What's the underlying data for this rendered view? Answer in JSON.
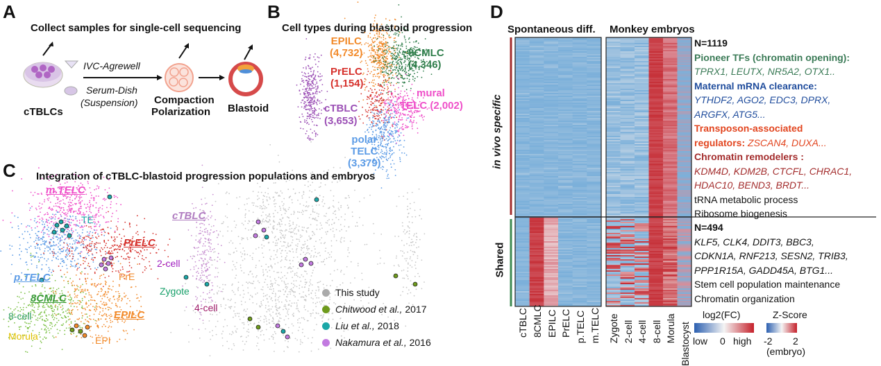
{
  "panels": {
    "a": "A",
    "b": "B",
    "c": "C",
    "d": "D"
  },
  "a": {
    "title": "Collect samples for single-cell sequencing",
    "ivc": "IVC-Agrewell",
    "serum": "Serum-Dish",
    "suspension": "(Suspension)",
    "cells": "cTBLCs",
    "compaction": "Compaction",
    "polarization": "Polarization",
    "blastoid": "Blastoid"
  },
  "b": {
    "title": "Cell types during blastoid progression",
    "clusters": [
      {
        "name": "EPILC",
        "count": "(4,732)",
        "color": "#f28a2a"
      },
      {
        "name": "8CMLC",
        "count": "(4,346)",
        "color": "#2e7d4a"
      },
      {
        "name": "PrELC",
        "count": "(1,154)",
        "color": "#d6312c"
      },
      {
        "name": "mural",
        "count": "TELC (2,002)",
        "color": "#ef4fc9"
      },
      {
        "name": "cTBLC",
        "count": "(3,653)",
        "color": "#9b4fb5"
      },
      {
        "name": "polar",
        "count": "TELC",
        "extra": "(3,379)",
        "color": "#5b9be6"
      }
    ]
  },
  "c": {
    "title": "Integration of cTBLC-blastoid progression populations and embryos",
    "labels": {
      "mtelc": "m.TELC",
      "te": "TE",
      "prelc": "PrELC",
      "pre": "PrE",
      "ptelc": "p.TELC",
      "cmlc": "8CMLC",
      "epilc": "EPILC",
      "cell8": "8-cell",
      "morula": "Morula",
      "epi": "EPI",
      "ctblc": "cTBLC",
      "cell2": "2-cell",
      "zygote": "Zygote",
      "cell4": "4-cell"
    },
    "legend": [
      {
        "text": "This study",
        "color": "#aaaaaa",
        "italic": false,
        "year": ""
      },
      {
        "text": "Chitwood et al.,",
        "color": "#6e9a1c",
        "italic": true,
        "year": " 2017"
      },
      {
        "text": "Liu et al.,",
        "color": "#1aa7a7",
        "italic": true,
        "year": " 2018"
      },
      {
        "text": "Nakamura et al.,",
        "color": "#c27ae0",
        "italic": true,
        "year": " 2016"
      }
    ]
  },
  "d": {
    "head_left": "Spontaneous diff.",
    "head_right": "Monkey embryos",
    "side_top": "in vivo specific",
    "side_bottom": "Shared",
    "n_top": "N=1119",
    "n_bottom": "N=494",
    "pioneer_title": "Pioneer TFs (chromatin opening):",
    "pioneer_genes": "TPRX1, LEUTX, NR5A2, OTX1..",
    "maternal_title": "Maternal mRNA clearance:",
    "maternal_genes1": "YTHDF2, AGO2, EDC3, DPRX,",
    "maternal_genes2": "ARGFX, ATG5...",
    "transposon_title1": "Transposon-associated",
    "transposon_title2": "regulators:",
    "transposon_genes": " ZSCAN4,  DUXA...",
    "remodel_title": "Chromatin remodelers :",
    "remodel_genes1": "KDM4D, KDM2B, CTCFL, CHRAC1,",
    "remodel_genes2": "HDAC10, BEND3, BRDT...",
    "go1": "tRNA metabolic process",
    "go2": "Ribosome biogenesis",
    "shared_genes1": "KLF5, CLK4, DDIT3, BBC3,",
    "shared_genes2": "CDKN1A, RNF213, SESN2, TRIB3,",
    "shared_genes3": "PPP1R15A, GADD45A, BTG1...",
    "go3": "Stem cell population maintenance",
    "go4": "Chromatin organization",
    "cols_left": [
      "cTBLC",
      "8CMLC",
      "EPILC",
      "PrELC",
      "p.TELC",
      "m.TELC"
    ],
    "cols_right": [
      "Zygote",
      "2-cell",
      "4-cell",
      "8-cell",
      "Morula",
      "Blastocyst"
    ],
    "legend_fc_title": "log2(FC)",
    "legend_fc_low": "low",
    "legend_fc_mid": "0",
    "legend_fc_high": "high",
    "legend_z_title": "Z-Score",
    "legend_z_min": "-2",
    "legend_z_max": "2",
    "legend_z_sub": "(embryo)",
    "colors": {
      "blue": "#7fb3dc",
      "red": "#c8333a",
      "light": "#f3d4d4",
      "green": "#3e8a52",
      "darkred": "#a32c2c",
      "teal": "#3a7a56",
      "navy": "#1f4c9c",
      "orange": "#e2451f"
    }
  }
}
